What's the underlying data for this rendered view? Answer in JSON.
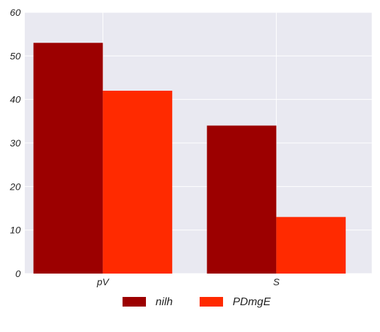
{
  "chart_data": {
    "type": "bar",
    "categories": [
      "pV",
      "S"
    ],
    "series": [
      {
        "name": "nilh",
        "values": [
          53,
          34
        ],
        "color": "#9c0000"
      },
      {
        "name": "PDmgE",
        "values": [
          42,
          13
        ],
        "color": "#ff2a00"
      }
    ],
    "title": "",
    "xlabel": "",
    "ylabel": "",
    "ylim": [
      0,
      60
    ],
    "yticks": [
      0,
      10,
      20,
      30,
      40,
      50,
      60
    ],
    "grid": true,
    "legend_position": "bottom-center",
    "background_color": "#e9e9f1",
    "grid_color": "#ffffff"
  }
}
